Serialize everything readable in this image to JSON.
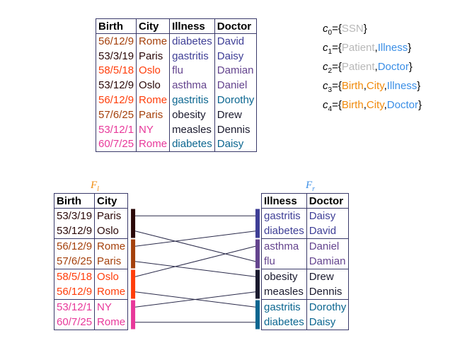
{
  "main_table": {
    "headers": [
      "Birth",
      "City",
      "Illness",
      "Doctor"
    ],
    "rows": [
      {
        "birth": "56/12/9",
        "city": "Rome",
        "illness": "diabetes",
        "doctor": "David",
        "c_birth": "#a4400b",
        "c_city": "#a4400b",
        "c_illness": "#3e3e96",
        "c_doctor": "#3e3e96"
      },
      {
        "birth": "53/3/19",
        "city": "Paris",
        "illness": "gastritis",
        "doctor": "Daisy",
        "c_birth": "#2a0808",
        "c_city": "#2a0808",
        "c_illness": "#3e3e96",
        "c_doctor": "#3e3e96"
      },
      {
        "birth": "58/5/18",
        "city": "Oslo",
        "illness": "flu",
        "doctor": "Damian",
        "c_birth": "#ff3d0a",
        "c_city": "#ff3d0a",
        "c_illness": "#64448e",
        "c_doctor": "#64448e"
      },
      {
        "birth": "53/12/9",
        "city": "Oslo",
        "illness": "asthma",
        "doctor": "Daniel",
        "c_birth": "#2a0808",
        "c_city": "#2a0808",
        "c_illness": "#64448e",
        "c_doctor": "#64448e"
      },
      {
        "birth": "56/12/9",
        "city": "Rome",
        "illness": "gastritis",
        "doctor": "Dorothy",
        "c_birth": "#ff3d0a",
        "c_city": "#ff3d0a",
        "c_illness": "#0b6690",
        "c_doctor": "#0b6690"
      },
      {
        "birth": "57/6/25",
        "city": "Paris",
        "illness": "obesity",
        "doctor": "Drew",
        "c_birth": "#a4400b",
        "c_city": "#a4400b",
        "c_illness": "#1a1a2e",
        "c_doctor": "#1a1a2e"
      },
      {
        "birth": "53/12/1",
        "city": "NY",
        "illness": "measles",
        "doctor": "Dennis",
        "c_birth": "#e8389a",
        "c_city": "#e8389a",
        "c_illness": "#1a1a2e",
        "c_doctor": "#1a1a2e"
      },
      {
        "birth": "60/7/25",
        "city": "Rome",
        "illness": "diabetes",
        "doctor": "Daisy",
        "c_birth": "#e8389a",
        "c_city": "#e8389a",
        "c_illness": "#0b6690",
        "c_doctor": "#0b6690"
      }
    ]
  },
  "legend": [
    {
      "name": "c",
      "sub": "0",
      "attrs": [
        {
          "text": "SSN",
          "color": "#b8b8b8"
        }
      ]
    },
    {
      "name": "c",
      "sub": "1",
      "attrs": [
        {
          "text": "Patient",
          "color": "#b8b8b8"
        },
        {
          "text": "Illness",
          "color": "#3a8ee6"
        }
      ]
    },
    {
      "name": "c",
      "sub": "2",
      "attrs": [
        {
          "text": "Patient",
          "color": "#b8b8b8"
        },
        {
          "text": "Doctor",
          "color": "#3a8ee6"
        }
      ]
    },
    {
      "name": "c",
      "sub": "3",
      "attrs": [
        {
          "text": "Birth",
          "color": "#f08a0c"
        },
        {
          "text": "City",
          "color": "#f08a0c"
        },
        {
          "text": "Illness",
          "color": "#3a8ee6"
        }
      ]
    },
    {
      "name": "c",
      "sub": "4",
      "attrs": [
        {
          "text": "Birth",
          "color": "#f08a0c"
        },
        {
          "text": "City",
          "color": "#f08a0c"
        },
        {
          "text": "Doctor",
          "color": "#3a8ee6"
        }
      ]
    }
  ],
  "left_fragment": {
    "label": "F",
    "label_sub": "l",
    "label_color": "#f08a0c",
    "headers": [
      "Birth",
      "City"
    ],
    "groups": [
      {
        "color": "#2a0808",
        "rows": [
          {
            "birth": "53/3/19",
            "city": "Paris"
          },
          {
            "birth": "53/12/9",
            "city": "Oslo"
          }
        ]
      },
      {
        "color": "#a4400b",
        "rows": [
          {
            "birth": "56/12/9",
            "city": "Rome"
          },
          {
            "birth": "57/6/25",
            "city": "Paris"
          }
        ]
      },
      {
        "color": "#ff3d0a",
        "rows": [
          {
            "birth": "58/5/18",
            "city": "Oslo"
          },
          {
            "birth": "56/12/9",
            "city": "Rome"
          }
        ]
      },
      {
        "color": "#e8389a",
        "rows": [
          {
            "birth": "53/12/1",
            "city": "NY"
          },
          {
            "birth": "60/7/25",
            "city": "Rome"
          }
        ]
      }
    ]
  },
  "right_fragment": {
    "label": "F",
    "label_sub": "r",
    "label_color": "#3a8ee6",
    "headers": [
      "Illness",
      "Doctor"
    ],
    "groups": [
      {
        "color": "#3e3e96",
        "rows": [
          {
            "illness": "gastritis",
            "doctor": "Daisy"
          },
          {
            "illness": "diabetes",
            "doctor": "David"
          }
        ]
      },
      {
        "color": "#64448e",
        "rows": [
          {
            "illness": "asthma",
            "doctor": "Daniel"
          },
          {
            "illness": "flu",
            "doctor": "Damian"
          }
        ]
      },
      {
        "color": "#1a1a2e",
        "rows": [
          {
            "illness": "obesity",
            "doctor": "Drew"
          },
          {
            "illness": "measles",
            "doctor": "Dennis"
          }
        ]
      },
      {
        "color": "#0b6690",
        "rows": [
          {
            "illness": "gastritis",
            "doctor": "Dorothy"
          },
          {
            "illness": "diabetes",
            "doctor": "Daisy"
          }
        ]
      }
    ]
  },
  "links": [
    {
      "from_row": 0,
      "to_row": 0
    },
    {
      "from_row": 1,
      "to_row": 3
    },
    {
      "from_row": 2,
      "to_row": 1
    },
    {
      "from_row": 3,
      "to_row": 4
    },
    {
      "from_row": 4,
      "to_row": 2
    },
    {
      "from_row": 5,
      "to_row": 6
    },
    {
      "from_row": 6,
      "to_row": 5
    },
    {
      "from_row": 7,
      "to_row": 7
    }
  ]
}
